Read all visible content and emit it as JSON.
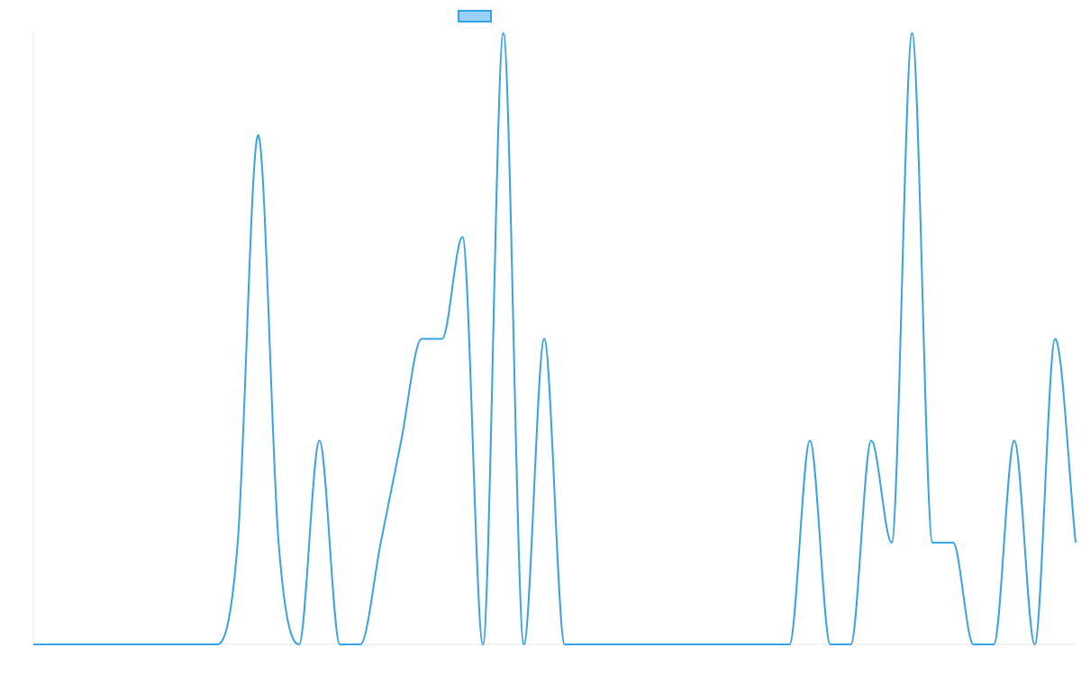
{
  "chart_data": {
    "type": "line",
    "title": "",
    "xlabel": "",
    "ylabel": "",
    "grid": false,
    "legend": "top",
    "series": [
      {
        "name": "",
        "color": "#36A2EB",
        "fill": "#9AD0F5",
        "values": [
          0,
          0,
          0,
          0,
          0,
          0,
          0,
          0,
          0,
          0,
          1,
          5,
          1,
          0,
          2,
          0,
          0,
          1,
          2,
          3,
          3,
          4,
          0,
          6,
          0,
          3,
          0,
          0,
          0,
          0,
          0,
          0,
          0,
          0,
          0,
          0,
          0,
          0,
          2,
          0,
          0,
          2,
          1,
          6,
          1,
          1,
          0,
          0,
          2,
          0,
          3,
          1
        ]
      }
    ],
    "ylim": [
      0,
      6
    ],
    "show_axes_labels": false
  }
}
